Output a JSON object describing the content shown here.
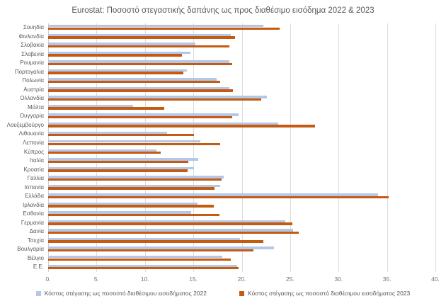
{
  "title": "Eurostat: Ποσοστό στεγαστικής δαπάνης ως προς διαθέσιμο εισόδημα 2022 & 2023",
  "chart_data": {
    "type": "bar",
    "orientation": "horizontal",
    "title": "Eurostat: Ποσοστό στεγαστικής δαπάνης ως προς διαθέσιμο εισόδημα 2022 & 2023",
    "categories": [
      "Σουηδία",
      "Φινλανδία",
      "Σλοβακία",
      "Σλοβενία",
      "Ρουμανία",
      "Πορτογαλία",
      "Πολωνία",
      "Αυστρία",
      "Ολλανδία",
      "Μάλτα",
      "Ουγγαρία",
      "Λουξεμβούργο",
      "Λιθουανία",
      "Λεττονία",
      "Κύπρος",
      "Ιταλία",
      "Κροατία",
      "Γαλλία",
      "Ισπανία",
      "Ελλάδα",
      "Ιρλανδία",
      "Εσθονία",
      "Γερμανία",
      "Δανία",
      "Τσεχία",
      "Βουλγαρία",
      "Βέλγιο",
      "Ε.Ε."
    ],
    "series": [
      {
        "name": "Κόστος στέγασης ως ποσοστό διαθέσιμου εισοδήματος 2022",
        "color": "#b4c7e7",
        "values": [
          22.2,
          18.9,
          15.2,
          14.7,
          18.7,
          14.3,
          17.4,
          18.7,
          22.6,
          8.8,
          19.7,
          23.8,
          12.3,
          15.7,
          11.2,
          15.5,
          15.1,
          18.1,
          17.8,
          34.1,
          15.4,
          14.8,
          24.5,
          25.3,
          19.8,
          23.3,
          18.0,
          19.5
        ]
      },
      {
        "name": "Κόστος στέγασης ως ποσοστό διαθέσιμου εισοδήματος 2023",
        "color": "#c55a11",
        "values": [
          23.9,
          19.3,
          18.7,
          13.8,
          19.0,
          14.0,
          17.8,
          19.1,
          22.0,
          12.0,
          19.0,
          27.6,
          15.1,
          17.8,
          11.6,
          14.5,
          14.4,
          17.9,
          17.2,
          35.2,
          17.1,
          17.7,
          25.2,
          25.9,
          22.2,
          21.2,
          18.9,
          19.7
        ]
      }
    ],
    "xlim": [
      0,
      40
    ],
    "x_ticks": [
      "0.",
      "5.",
      "10.",
      "15.",
      "20.",
      "25.",
      "30.",
      "35.",
      "40."
    ],
    "x_tick_values": [
      0,
      5,
      10,
      15,
      20,
      25,
      30,
      35,
      40
    ],
    "grid": true,
    "legend_position": "bottom"
  }
}
